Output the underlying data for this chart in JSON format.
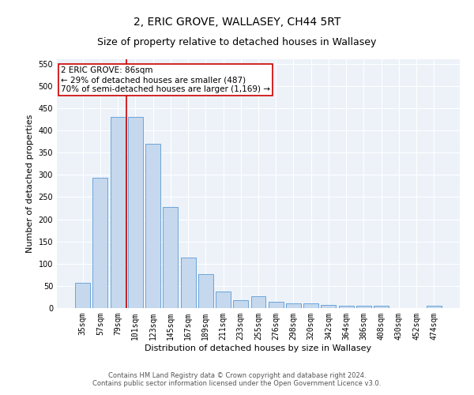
{
  "title": "2, ERIC GROVE, WALLASEY, CH44 5RT",
  "subtitle": "Size of property relative to detached houses in Wallasey",
  "xlabel": "Distribution of detached houses by size in Wallasey",
  "ylabel": "Number of detached properties",
  "categories": [
    "35sqm",
    "57sqm",
    "79sqm",
    "101sqm",
    "123sqm",
    "145sqm",
    "167sqm",
    "189sqm",
    "211sqm",
    "233sqm",
    "255sqm",
    "276sqm",
    "298sqm",
    "320sqm",
    "342sqm",
    "364sqm",
    "386sqm",
    "408sqm",
    "430sqm",
    "452sqm",
    "474sqm"
  ],
  "values": [
    57,
    293,
    430,
    430,
    370,
    227,
    113,
    77,
    38,
    17,
    27,
    15,
    10,
    10,
    7,
    5,
    5,
    5,
    0,
    0,
    5
  ],
  "bar_color": "#c5d8ed",
  "bar_edge_color": "#5b9bd5",
  "vline_x_index": 2.5,
  "vline_color": "#cc0000",
  "annotation_text": "2 ERIC GROVE: 86sqm\n← 29% of detached houses are smaller (487)\n70% of semi-detached houses are larger (1,169) →",
  "annotation_box_color": "#ffffff",
  "annotation_box_edge_color": "#cc0000",
  "ylim": [
    0,
    560
  ],
  "yticks": [
    0,
    50,
    100,
    150,
    200,
    250,
    300,
    350,
    400,
    450,
    500,
    550
  ],
  "bg_color": "#edf2f9",
  "footer_line1": "Contains HM Land Registry data © Crown copyright and database right 2024.",
  "footer_line2": "Contains public sector information licensed under the Open Government Licence v3.0.",
  "title_fontsize": 10,
  "xlabel_fontsize": 8,
  "ylabel_fontsize": 8,
  "tick_fontsize": 7,
  "footer_fontsize": 6,
  "annotation_fontsize": 7.5
}
